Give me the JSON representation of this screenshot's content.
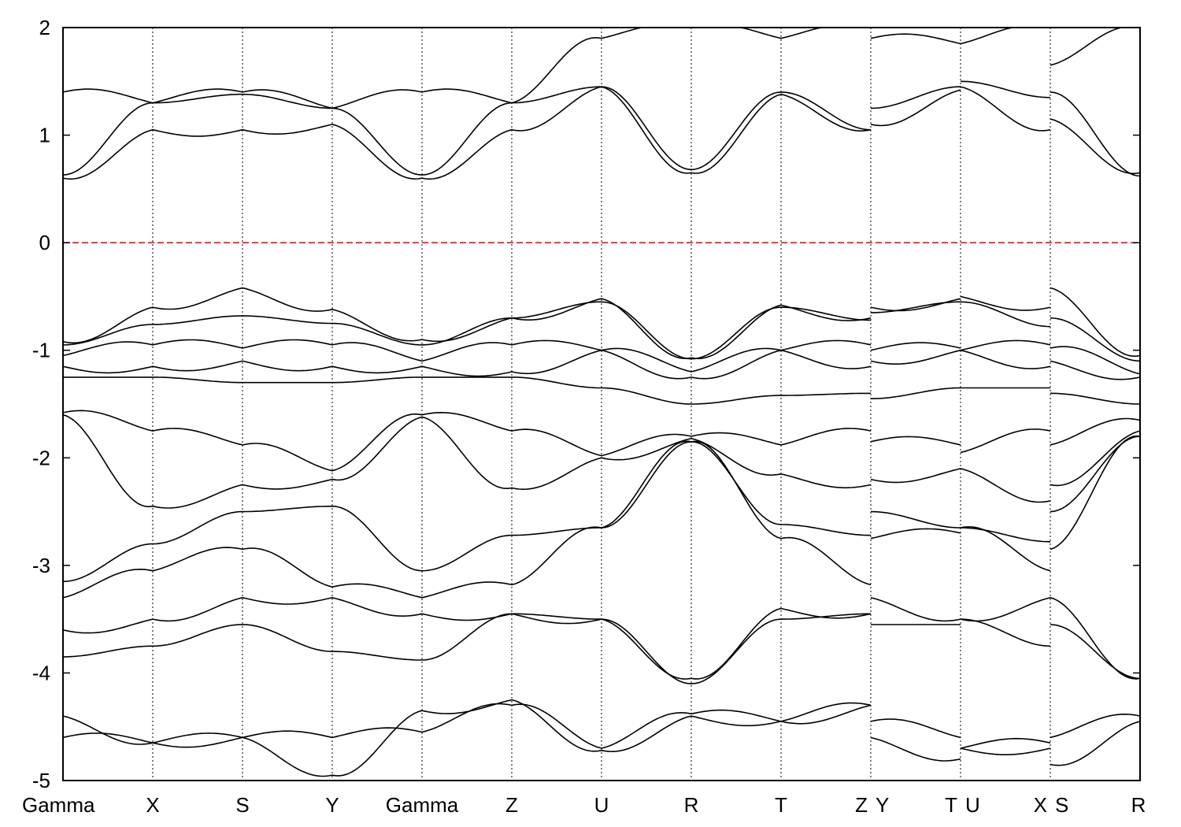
{
  "chart_data": {
    "type": "line",
    "title": "",
    "xlabel": "",
    "ylabel": "",
    "ylim": [
      -5,
      2
    ],
    "y_ticks": [
      -5,
      -4,
      -3,
      -2,
      -1,
      0,
      1,
      2
    ],
    "high_symmetry_points": [
      {
        "label": "Gamma",
        "x": 0
      },
      {
        "label": "X",
        "x": 1
      },
      {
        "label": "S",
        "x": 2
      },
      {
        "label": "Y",
        "x": 3
      },
      {
        "label": "Gamma",
        "x": 4
      },
      {
        "label": "Z",
        "x": 5
      },
      {
        "label": "U",
        "x": 6
      },
      {
        "label": "R",
        "x": 7
      },
      {
        "label": "T",
        "x": 8
      },
      {
        "label": "Z",
        "x": 9
      },
      {
        "label": "Y",
        "x": 9
      },
      {
        "label": "T",
        "x": 10
      },
      {
        "label": "U",
        "x": 10
      },
      {
        "label": "X",
        "x": 11
      },
      {
        "label": "S",
        "x": 11
      },
      {
        "label": "R",
        "x": 12
      }
    ],
    "fermi_level": 0,
    "fermi_line_color": "#e00000",
    "band_color": "#000000",
    "series": [
      {
        "values": [
          0.6,
          1.05,
          1.05,
          1.1,
          0.6,
          1.05,
          1.45,
          0.65,
          1.38,
          1.05,
          1.1,
          1.42,
          1.45,
          1.05,
          1.15,
          0.65
        ]
      },
      {
        "values": [
          0.63,
          1.3,
          1.38,
          1.25,
          0.63,
          1.3,
          1.45,
          0.68,
          1.4,
          1.05,
          1.25,
          1.45,
          1.5,
          1.35,
          1.4,
          0.62
        ]
      },
      {
        "values": [
          1.4,
          1.3,
          1.4,
          1.25,
          1.4,
          1.3,
          1.9,
          2.0,
          1.9,
          2.0,
          1.9,
          1.85,
          1.85,
          2.0,
          1.65,
          2.0
        ]
      },
      {
        "values": [
          -0.92,
          -0.6,
          -0.42,
          -0.62,
          -0.9,
          -0.7,
          -0.52,
          -1.07,
          -0.58,
          -0.7,
          -0.6,
          -0.52,
          -0.5,
          -0.6,
          -0.42,
          -1.05
        ]
      },
      {
        "values": [
          -0.95,
          -0.76,
          -0.68,
          -0.75,
          -0.95,
          -0.7,
          -0.55,
          -1.08,
          -0.6,
          -0.72,
          -0.65,
          -0.55,
          -0.55,
          -0.78,
          -0.7,
          -1.1
        ]
      },
      {
        "values": [
          -1.05,
          -0.95,
          -0.98,
          -0.95,
          -1.1,
          -0.95,
          -1.0,
          -1.2,
          -1.0,
          -0.95,
          -1.0,
          -0.98,
          -1.0,
          -0.95,
          -0.98,
          -1.22
        ]
      },
      {
        "values": [
          -1.15,
          -1.15,
          -1.1,
          -1.15,
          -1.15,
          -1.2,
          -1.0,
          -1.25,
          -1.0,
          -1.15,
          -1.1,
          -1.0,
          -1.0,
          -1.15,
          -1.1,
          -1.25
        ]
      },
      {
        "values": [
          -1.25,
          -1.25,
          -1.3,
          -1.3,
          -1.25,
          -1.25,
          -1.35,
          -1.5,
          -1.42,
          -1.4,
          -1.45,
          -1.35,
          -1.35,
          -1.35,
          -1.4,
          -1.5
        ]
      },
      {
        "values": [
          -1.58,
          -1.75,
          -1.88,
          -2.12,
          -1.6,
          -1.75,
          -1.98,
          -1.8,
          -1.88,
          -1.75,
          -1.85,
          -1.88,
          -1.95,
          -1.75,
          -1.88,
          -1.65
        ]
      },
      {
        "values": [
          -1.6,
          -2.45,
          -2.25,
          -2.2,
          -1.62,
          -2.28,
          -2.0,
          -1.82,
          -2.15,
          -2.25,
          -2.2,
          -2.1,
          -2.1,
          -2.4,
          -2.25,
          -1.75
        ]
      },
      {
        "values": [
          -3.15,
          -2.8,
          -2.5,
          -2.45,
          -3.05,
          -2.72,
          -2.65,
          -1.85,
          -2.62,
          -2.72,
          -2.5,
          -2.65,
          -2.65,
          -2.78,
          -2.5,
          -1.8
        ]
      },
      {
        "values": [
          -3.3,
          -3.05,
          -2.85,
          -3.2,
          -3.3,
          -3.18,
          -2.65,
          -1.85,
          -2.75,
          -3.18,
          -2.75,
          -2.7,
          -2.65,
          -3.05,
          -2.85,
          -1.8
        ]
      },
      {
        "values": [
          -3.6,
          -3.5,
          -3.3,
          -3.3,
          -3.45,
          -3.45,
          -3.5,
          -4.05,
          -3.4,
          -3.45,
          -3.3,
          -3.5,
          -3.5,
          -3.3,
          -3.3,
          -4.05
        ]
      },
      {
        "values": [
          -3.85,
          -3.75,
          -3.55,
          -3.8,
          -3.88,
          -3.45,
          -3.5,
          -4.1,
          -3.5,
          -3.45,
          -3.55,
          -3.55,
          -3.5,
          -3.75,
          -3.55,
          -4.05
        ]
      },
      {
        "values": [
          -4.6,
          -4.65,
          -4.6,
          -4.6,
          -4.55,
          -4.3,
          -4.7,
          -4.38,
          -4.45,
          -4.3,
          -4.45,
          -4.6,
          -4.7,
          -4.65,
          -4.6,
          -4.4
        ]
      },
      {
        "values": [
          -4.4,
          -4.65,
          -4.6,
          -4.95,
          -4.35,
          -4.25,
          -4.72,
          -4.4,
          -4.45,
          -4.3,
          -4.6,
          -4.8,
          -4.7,
          -4.7,
          -4.85,
          -4.45
        ]
      }
    ]
  }
}
